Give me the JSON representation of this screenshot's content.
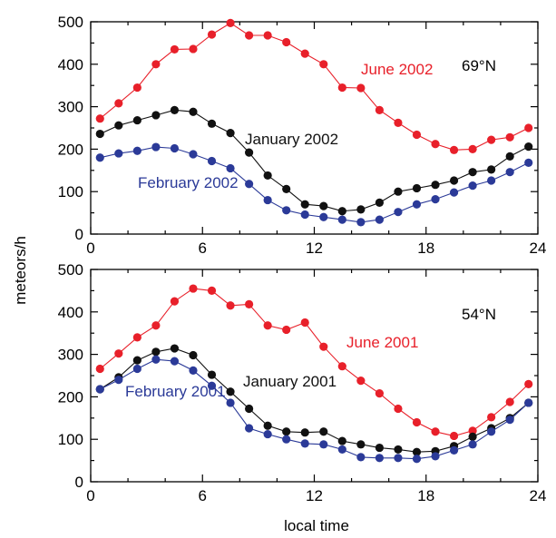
{
  "chart_data": [
    {
      "type": "line",
      "panel": "top",
      "location_label": "69°N",
      "xlim": [
        0,
        24
      ],
      "ylim": [
        0,
        500
      ],
      "xticks": [
        0,
        6,
        12,
        18,
        24
      ],
      "yticks": [
        0,
        100,
        200,
        300,
        400,
        500
      ],
      "series": [
        {
          "name": "June 2002",
          "color": "#e8202a",
          "x": [
            0.5,
            1.5,
            2.5,
            3.5,
            4.5,
            5.5,
            6.5,
            7.5,
            8.5,
            9.5,
            10.5,
            11.5,
            12.5,
            13.5,
            14.5,
            15.5,
            16.5,
            17.5,
            18.5,
            19.5,
            20.5,
            21.5,
            22.5,
            23.5
          ],
          "values": [
            272,
            308,
            345,
            400,
            435,
            436,
            470,
            497,
            468,
            468,
            452,
            425,
            400,
            345,
            344,
            292,
            262,
            234,
            212,
            198,
            200,
            222,
            228,
            250
          ]
        },
        {
          "name": "January 2002",
          "color": "#111111",
          "x": [
            0.5,
            1.5,
            2.5,
            3.5,
            4.5,
            5.5,
            6.5,
            7.5,
            8.5,
            9.5,
            10.5,
            11.5,
            12.5,
            13.5,
            14.5,
            15.5,
            16.5,
            17.5,
            18.5,
            19.5,
            20.5,
            21.5,
            22.5,
            23.5
          ],
          "values": [
            236,
            256,
            268,
            280,
            292,
            288,
            260,
            238,
            192,
            138,
            106,
            70,
            66,
            54,
            58,
            74,
            100,
            108,
            116,
            126,
            146,
            152,
            183,
            206
          ]
        },
        {
          "name": "February 2002",
          "color": "#2b3a98",
          "x": [
            0.5,
            1.5,
            2.5,
            3.5,
            4.5,
            5.5,
            6.5,
            7.5,
            8.5,
            9.5,
            10.5,
            11.5,
            12.5,
            13.5,
            14.5,
            15.5,
            16.5,
            17.5,
            18.5,
            19.5,
            20.5,
            21.5,
            22.5,
            23.5
          ],
          "values": [
            180,
            190,
            196,
            205,
            202,
            188,
            172,
            155,
            118,
            80,
            56,
            46,
            40,
            34,
            28,
            34,
            52,
            70,
            82,
            98,
            114,
            126,
            146,
            168
          ]
        }
      ]
    },
    {
      "type": "line",
      "panel": "bottom",
      "location_label": "54°N",
      "xlim": [
        0,
        24
      ],
      "ylim": [
        0,
        500
      ],
      "xticks": [
        0,
        6,
        12,
        18,
        24
      ],
      "yticks": [
        0,
        100,
        200,
        300,
        400,
        500
      ],
      "series": [
        {
          "name": "June 2001",
          "color": "#e8202a",
          "x": [
            0.5,
            1.5,
            2.5,
            3.5,
            4.5,
            5.5,
            6.5,
            7.5,
            8.5,
            9.5,
            10.5,
            11.5,
            12.5,
            13.5,
            14.5,
            15.5,
            16.5,
            17.5,
            18.5,
            19.5,
            20.5,
            21.5,
            22.5,
            23.5
          ],
          "values": [
            266,
            302,
            340,
            368,
            425,
            455,
            450,
            415,
            418,
            368,
            358,
            375,
            318,
            272,
            238,
            208,
            172,
            140,
            118,
            108,
            120,
            152,
            188,
            230
          ]
        },
        {
          "name": "January 2001",
          "color": "#111111",
          "x": [
            0.5,
            1.5,
            2.5,
            3.5,
            4.5,
            5.5,
            6.5,
            7.5,
            8.5,
            9.5,
            10.5,
            11.5,
            12.5,
            13.5,
            14.5,
            15.5,
            16.5,
            17.5,
            18.5,
            19.5,
            20.5,
            21.5,
            22.5,
            23.5
          ],
          "values": [
            218,
            246,
            286,
            306,
            314,
            298,
            252,
            212,
            172,
            132,
            118,
            116,
            118,
            96,
            88,
            80,
            76,
            70,
            72,
            84,
            106,
            126,
            150,
            186
          ]
        },
        {
          "name": "February 2001",
          "color": "#2b3a98",
          "x": [
            0.5,
            1.5,
            2.5,
            3.5,
            4.5,
            5.5,
            6.5,
            7.5,
            8.5,
            9.5,
            10.5,
            11.5,
            12.5,
            13.5,
            14.5,
            15.5,
            16.5,
            17.5,
            18.5,
            19.5,
            20.5,
            21.5,
            22.5,
            23.5
          ],
          "values": [
            218,
            240,
            266,
            288,
            284,
            262,
            226,
            186,
            126,
            112,
            100,
            90,
            88,
            76,
            58,
            56,
            56,
            54,
            60,
            74,
            88,
            118,
            146,
            186
          ]
        }
      ]
    }
  ],
  "axes": {
    "xlabel": "local time",
    "ylabel": "meteors/h"
  }
}
